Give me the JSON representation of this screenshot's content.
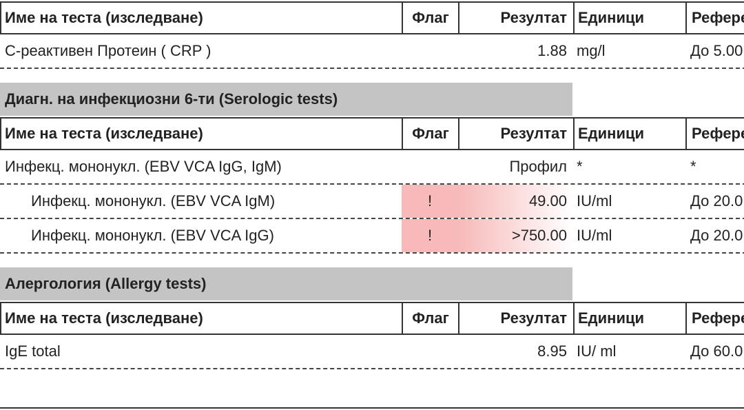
{
  "tables": [
    {
      "header": [
        "Име на теста (изследване)",
        "Флаг",
        "Резултат",
        "Единици",
        "Рефере"
      ],
      "rows": [
        {
          "level": 0,
          "cells": [
            "С-реактивен Протеин ( CRP )",
            null,
            "1.88",
            "mg/l",
            "До 5.00"
          ]
        }
      ]
    },
    {
      "title": "Диагн. на инфекциозни 6-ти (Serologic tests)",
      "header": [
        "Име на теста (изследване)",
        "Флаг",
        "Резултат",
        "Единици",
        "Рефере"
      ],
      "rows": [
        {
          "level": 0,
          "cells": [
            "Инфекц. мононукл. (EBV VCA IgG, IgM)",
            null,
            "Профил",
            "*",
            "*"
          ]
        },
        {
          "level": 1,
          "cells": [
            "Инфекц. мононукл. (EBV VCA IgM)",
            "!",
            "49.00",
            "IU/ml",
            "До 20.0"
          ]
        },
        {
          "level": 1,
          "cells": [
            "Инфекц. мононукл. (EBV VCA IgG)",
            "!",
            ">750.00",
            "IU/ml",
            "До 20.0"
          ]
        }
      ]
    },
    {
      "title": "Алергология (Allergy tests)",
      "header": [
        "Име на теста (изследване)",
        "Флаг",
        "Резултат",
        "Единици",
        "Рефере"
      ],
      "rows": [
        {
          "level": 0,
          "cells": [
            "IgE total",
            null,
            "8.95",
            "IU/ ml",
            "До 60.0"
          ]
        }
      ]
    }
  ]
}
